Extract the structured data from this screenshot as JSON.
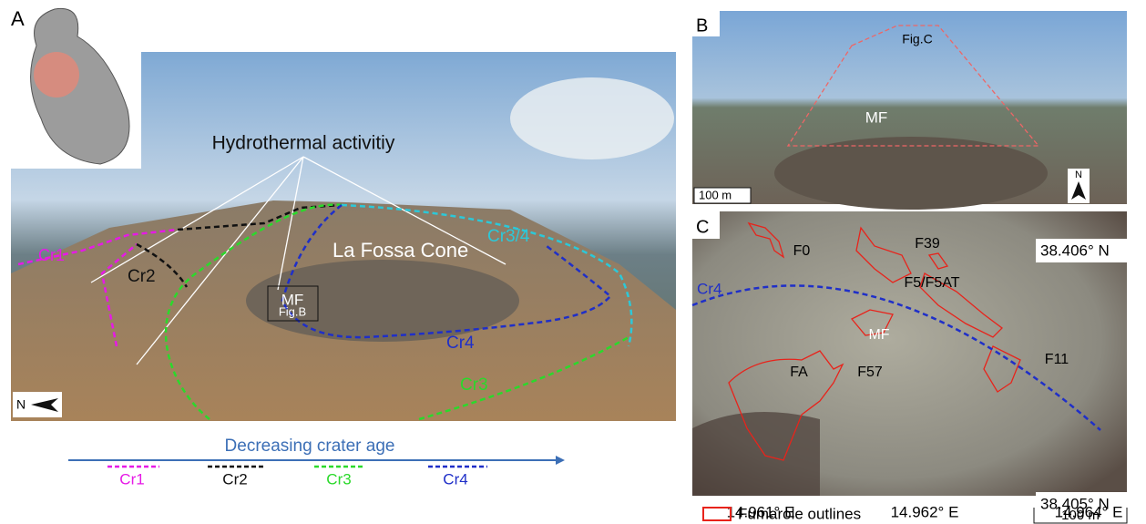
{
  "panel_a": {
    "label": "A",
    "annotation": "Hydrothermal activitiy",
    "crater_labels": [
      "Cr3/4",
      "Cr1",
      "Cr2",
      "Cr4",
      "Cr3"
    ],
    "mf": "MF",
    "fig_ref": "Fig.B",
    "cone": "La Fossa Cone",
    "north": "N"
  },
  "legend": {
    "title": "Decreasing crater age",
    "items": [
      "Cr1",
      "Cr2",
      "Cr3",
      "Cr4"
    ]
  },
  "panel_b": {
    "label": "B",
    "fig_ref": "Fig.C",
    "mf": "MF",
    "north": "N",
    "scale": "100 m"
  },
  "panel_c": {
    "label": "C",
    "fumaroles": [
      "F0",
      "F39",
      "F5/F5AT",
      "MF",
      "FA",
      "F57",
      "F11"
    ],
    "crater": "Cr4",
    "lat_labels": [
      "38.406° N",
      "38.405° N"
    ],
    "lon_labels": [
      "14.961° E",
      "14.962° E",
      "14.964° E"
    ],
    "legend": "Fumarole outlines",
    "scale": "100 m"
  }
}
